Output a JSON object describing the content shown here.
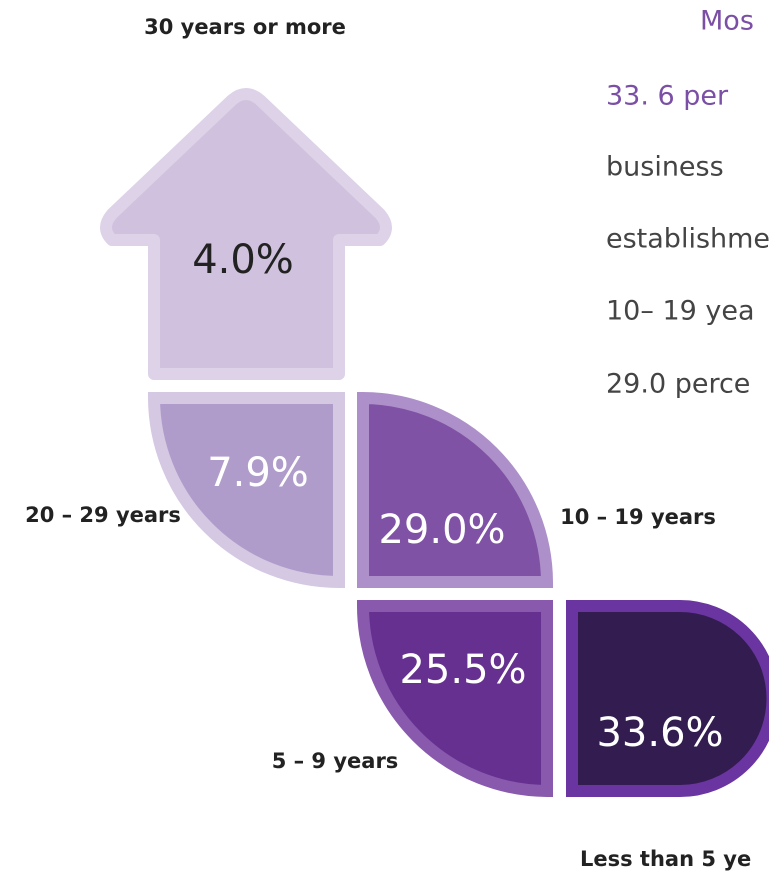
{
  "segments": [
    {
      "label": "30 years or more",
      "value": "4.0%"
    },
    {
      "label": "20 – 29 years",
      "value": "7.9%"
    },
    {
      "label": "10 – 19 years",
      "value": "29.0%"
    },
    {
      "label": "5 – 9 years",
      "value": "25.5%"
    },
    {
      "label": "Less than 5 ye",
      "value": "33.6%"
    }
  ],
  "text": {
    "heading": "Mos",
    "highlight": "33. 6 per",
    "lines": [
      "business",
      "establishme",
      "10– 19 yea",
      "29.0 perce"
    ]
  }
}
